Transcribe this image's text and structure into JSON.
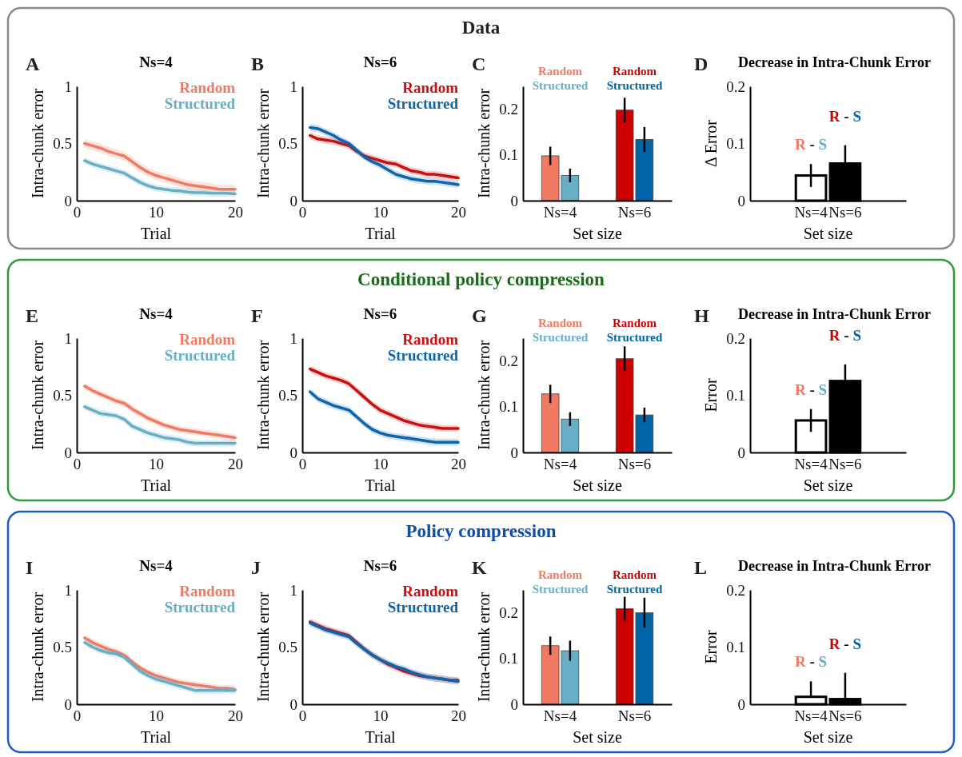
{
  "chart_data": [
    {
      "type": "line",
      "title": "Ns=4",
      "annotations": [
        "A"
      ],
      "xlabel": "Trial",
      "ylabel": "Intra-chunk error",
      "xlim": [
        0,
        20
      ],
      "xticks": [
        0,
        10,
        20
      ],
      "ylim": [
        0,
        1
      ],
      "yticks": [
        0,
        0.5,
        1
      ],
      "legend": "top right",
      "x": [
        1,
        2,
        3,
        4,
        5,
        6,
        7,
        8,
        9,
        10,
        11,
        12,
        13,
        14,
        15,
        16,
        17,
        18,
        19,
        20
      ],
      "series": [
        {
          "name": "Random",
          "color": "#f07a62",
          "values": [
            0.5,
            0.48,
            0.46,
            0.43,
            0.41,
            0.39,
            0.34,
            0.29,
            0.25,
            0.22,
            0.2,
            0.18,
            0.16,
            0.14,
            0.13,
            0.12,
            0.11,
            0.1,
            0.1,
            0.1
          ],
          "lower": [
            0.46,
            0.44,
            0.42,
            0.39,
            0.37,
            0.35,
            0.3,
            0.25,
            0.21,
            0.18,
            0.16,
            0.14,
            0.12,
            0.1,
            0.09,
            0.08,
            0.07,
            0.06,
            0.06,
            0.06
          ],
          "upper": [
            0.54,
            0.52,
            0.5,
            0.47,
            0.45,
            0.43,
            0.38,
            0.33,
            0.29,
            0.26,
            0.24,
            0.22,
            0.2,
            0.18,
            0.17,
            0.16,
            0.15,
            0.14,
            0.14,
            0.14
          ]
        },
        {
          "name": "Structured",
          "color": "#67aec6",
          "values": [
            0.35,
            0.32,
            0.3,
            0.28,
            0.26,
            0.24,
            0.2,
            0.16,
            0.13,
            0.11,
            0.1,
            0.09,
            0.085,
            0.075,
            0.07,
            0.07,
            0.065,
            0.065,
            0.065,
            0.06
          ],
          "lower": [
            0.32,
            0.29,
            0.27,
            0.25,
            0.23,
            0.21,
            0.17,
            0.13,
            0.1,
            0.08,
            0.07,
            0.06,
            0.055,
            0.045,
            0.04,
            0.04,
            0.035,
            0.035,
            0.035,
            0.03
          ],
          "upper": [
            0.38,
            0.35,
            0.33,
            0.31,
            0.29,
            0.27,
            0.23,
            0.19,
            0.16,
            0.14,
            0.13,
            0.12,
            0.115,
            0.105,
            0.1,
            0.1,
            0.095,
            0.095,
            0.095,
            0.09
          ]
        }
      ]
    },
    {
      "type": "line",
      "title": "Ns=6",
      "annotations": [
        "B"
      ],
      "xlabel": "Trial",
      "ylabel": "Intra-chunk error",
      "xlim": [
        0,
        20
      ],
      "xticks": [
        0,
        10,
        20
      ],
      "ylim": [
        0,
        1
      ],
      "yticks": [
        0,
        0.5,
        1
      ],
      "legend": "top right",
      "x": [
        1,
        2,
        3,
        4,
        5,
        6,
        7,
        8,
        9,
        10,
        11,
        12,
        13,
        14,
        15,
        16,
        17,
        18,
        19,
        20
      ],
      "series": [
        {
          "name": "Random",
          "color": "#c81010",
          "values": [
            0.57,
            0.54,
            0.53,
            0.52,
            0.5,
            0.48,
            0.43,
            0.39,
            0.37,
            0.35,
            0.33,
            0.32,
            0.29,
            0.26,
            0.25,
            0.23,
            0.23,
            0.22,
            0.21,
            0.2
          ],
          "lower": [
            0.54,
            0.51,
            0.5,
            0.49,
            0.47,
            0.45,
            0.4,
            0.36,
            0.34,
            0.32,
            0.3,
            0.29,
            0.26,
            0.23,
            0.22,
            0.2,
            0.2,
            0.19,
            0.18,
            0.17
          ],
          "upper": [
            0.6,
            0.57,
            0.56,
            0.55,
            0.53,
            0.51,
            0.46,
            0.42,
            0.4,
            0.38,
            0.36,
            0.35,
            0.32,
            0.29,
            0.28,
            0.26,
            0.26,
            0.25,
            0.24,
            0.23
          ]
        },
        {
          "name": "Structured",
          "color": "#0e65ad",
          "values": [
            0.64,
            0.63,
            0.6,
            0.57,
            0.53,
            0.5,
            0.44,
            0.38,
            0.34,
            0.31,
            0.27,
            0.23,
            0.21,
            0.19,
            0.18,
            0.17,
            0.17,
            0.16,
            0.15,
            0.14
          ],
          "lower": [
            0.61,
            0.6,
            0.57,
            0.54,
            0.5,
            0.47,
            0.41,
            0.35,
            0.31,
            0.28,
            0.24,
            0.2,
            0.18,
            0.16,
            0.15,
            0.14,
            0.14,
            0.13,
            0.12,
            0.11
          ],
          "upper": [
            0.67,
            0.66,
            0.63,
            0.6,
            0.56,
            0.53,
            0.47,
            0.41,
            0.37,
            0.34,
            0.3,
            0.26,
            0.24,
            0.22,
            0.21,
            0.2,
            0.2,
            0.19,
            0.18,
            0.17
          ]
        }
      ]
    },
    {
      "type": "bar",
      "subtitle": "Data",
      "annotations": [
        "C"
      ],
      "xlabel": "Set size",
      "ylabel": "Intra-chunk error",
      "ylim": [
        0,
        0.25
      ],
      "yticks": [
        0,
        0.1,
        0.2
      ],
      "legend": "top",
      "categories": [
        "Ns=4",
        "Ns=6"
      ],
      "series": [
        {
          "name": "Random",
          "colors": [
            "#f07a62",
            "#cc0000"
          ],
          "values": [
            0.098,
            0.198
          ],
          "errors": [
            0.02,
            0.027
          ]
        },
        {
          "name": "Structured",
          "colors": [
            "#67aec6",
            "#0065a8"
          ],
          "values": [
            0.055,
            0.134
          ],
          "errors": [
            0.015,
            0.027
          ]
        }
      ]
    },
    {
      "type": "bar",
      "title": "Decrease in Intra-Chunk Error",
      "annotations": [
        "D",
        "R - S",
        "R - S"
      ],
      "xlabel": "Set size",
      "ylabel": "Δ Error",
      "ylim": [
        0,
        0.2
      ],
      "yticks": [
        0,
        0.1,
        0.2
      ],
      "categories": [
        "Ns=4",
        "Ns=6"
      ],
      "values": [
        0.044,
        0.065
      ],
      "colors": [
        "#ffffff",
        "#000000"
      ],
      "errors": [
        0.02,
        0.032
      ]
    },
    {
      "type": "line",
      "title": "Ns=4",
      "annotations": [
        "E"
      ],
      "xlabel": "Trial",
      "ylabel": "Intra-chunk error",
      "xlim": [
        0,
        20
      ],
      "xticks": [
        0,
        10,
        20
      ],
      "ylim": [
        0,
        1
      ],
      "yticks": [
        0,
        0.5,
        1
      ],
      "legend": "top right",
      "x": [
        1,
        2,
        3,
        4,
        5,
        6,
        7,
        8,
        9,
        10,
        11,
        12,
        13,
        14,
        15,
        16,
        17,
        18,
        19,
        20
      ],
      "series": [
        {
          "name": "Random",
          "color": "#f07a62",
          "values": [
            0.58,
            0.54,
            0.51,
            0.48,
            0.45,
            0.43,
            0.38,
            0.34,
            0.3,
            0.27,
            0.24,
            0.22,
            0.2,
            0.19,
            0.18,
            0.17,
            0.16,
            0.15,
            0.14,
            0.13
          ],
          "lower": [
            0.55,
            0.51,
            0.48,
            0.45,
            0.42,
            0.4,
            0.35,
            0.31,
            0.27,
            0.24,
            0.21,
            0.19,
            0.17,
            0.16,
            0.15,
            0.14,
            0.13,
            0.12,
            0.11,
            0.1
          ],
          "upper": [
            0.61,
            0.57,
            0.54,
            0.51,
            0.48,
            0.46,
            0.41,
            0.37,
            0.33,
            0.3,
            0.27,
            0.25,
            0.23,
            0.22,
            0.21,
            0.2,
            0.19,
            0.18,
            0.17,
            0.16
          ]
        },
        {
          "name": "Structured",
          "color": "#67aec6",
          "values": [
            0.4,
            0.37,
            0.34,
            0.33,
            0.32,
            0.29,
            0.23,
            0.2,
            0.17,
            0.15,
            0.13,
            0.12,
            0.11,
            0.09,
            0.08,
            0.08,
            0.08,
            0.08,
            0.08,
            0.08
          ],
          "lower": [
            0.37,
            0.34,
            0.31,
            0.3,
            0.29,
            0.26,
            0.2,
            0.17,
            0.14,
            0.12,
            0.1,
            0.09,
            0.08,
            0.06,
            0.05,
            0.05,
            0.05,
            0.05,
            0.05,
            0.05
          ],
          "upper": [
            0.43,
            0.4,
            0.37,
            0.36,
            0.35,
            0.32,
            0.26,
            0.23,
            0.2,
            0.18,
            0.16,
            0.15,
            0.14,
            0.12,
            0.11,
            0.11,
            0.11,
            0.11,
            0.11,
            0.11
          ]
        }
      ]
    },
    {
      "type": "line",
      "title": "Ns=6",
      "annotations": [
        "F"
      ],
      "xlabel": "Trial",
      "ylabel": "Intra-chunk error",
      "xlim": [
        0,
        20
      ],
      "xticks": [
        0,
        10,
        20
      ],
      "ylim": [
        0,
        1
      ],
      "yticks": [
        0,
        0.5,
        1
      ],
      "legend": "top right",
      "x": [
        1,
        2,
        3,
        4,
        5,
        6,
        7,
        8,
        9,
        10,
        11,
        12,
        13,
        14,
        15,
        16,
        17,
        18,
        19,
        20
      ],
      "series": [
        {
          "name": "Random",
          "color": "#c81010",
          "values": [
            0.73,
            0.7,
            0.67,
            0.65,
            0.63,
            0.6,
            0.54,
            0.48,
            0.42,
            0.37,
            0.34,
            0.31,
            0.28,
            0.26,
            0.24,
            0.23,
            0.22,
            0.21,
            0.21,
            0.21
          ],
          "lower": [
            0.7,
            0.67,
            0.64,
            0.62,
            0.6,
            0.57,
            0.51,
            0.45,
            0.39,
            0.34,
            0.31,
            0.28,
            0.25,
            0.23,
            0.21,
            0.2,
            0.19,
            0.18,
            0.18,
            0.18
          ],
          "upper": [
            0.76,
            0.73,
            0.7,
            0.68,
            0.66,
            0.63,
            0.57,
            0.51,
            0.45,
            0.4,
            0.37,
            0.34,
            0.31,
            0.29,
            0.27,
            0.26,
            0.25,
            0.24,
            0.24,
            0.24
          ]
        },
        {
          "name": "Structured",
          "color": "#0e65ad",
          "values": [
            0.53,
            0.47,
            0.44,
            0.41,
            0.39,
            0.37,
            0.31,
            0.25,
            0.2,
            0.17,
            0.15,
            0.14,
            0.13,
            0.12,
            0.11,
            0.1,
            0.09,
            0.09,
            0.09,
            0.09
          ],
          "lower": [
            0.5,
            0.44,
            0.41,
            0.38,
            0.36,
            0.34,
            0.28,
            0.22,
            0.17,
            0.14,
            0.12,
            0.11,
            0.1,
            0.09,
            0.08,
            0.07,
            0.06,
            0.06,
            0.06,
            0.06
          ],
          "upper": [
            0.56,
            0.5,
            0.47,
            0.44,
            0.42,
            0.4,
            0.34,
            0.28,
            0.23,
            0.2,
            0.18,
            0.17,
            0.16,
            0.15,
            0.14,
            0.13,
            0.12,
            0.12,
            0.12,
            0.12
          ]
        }
      ]
    },
    {
      "type": "bar",
      "subtitle": "Conditional policy compression",
      "annotations": [
        "G"
      ],
      "xlabel": "Set size",
      "ylabel": "Intra-chunk error",
      "ylim": [
        0,
        0.25
      ],
      "yticks": [
        0,
        0.1,
        0.2
      ],
      "legend": "top",
      "categories": [
        "Ns=4",
        "Ns=6"
      ],
      "series": [
        {
          "name": "Random",
          "colors": [
            "#f07a62",
            "#cc0000"
          ],
          "values": [
            0.128,
            0.205
          ],
          "errors": [
            0.02,
            0.027
          ]
        },
        {
          "name": "Structured",
          "colors": [
            "#67aec6",
            "#0065a8"
          ],
          "values": [
            0.073,
            0.082
          ],
          "errors": [
            0.015,
            0.016
          ]
        }
      ]
    },
    {
      "type": "bar",
      "title": "Decrease in Intra-Chunk Error",
      "annotations": [
        "H",
        "R - S",
        "R - S"
      ],
      "xlabel": "Set size",
      "ylabel": "Error",
      "ylim": [
        0,
        0.2
      ],
      "yticks": [
        0,
        0.1,
        0.2
      ],
      "categories": [
        "Ns=4",
        "Ns=6"
      ],
      "values": [
        0.056,
        0.125
      ],
      "colors": [
        "#ffffff",
        "#000000"
      ],
      "errors": [
        0.02,
        0.029
      ]
    },
    {
      "type": "line",
      "title": "Ns=4",
      "annotations": [
        "I"
      ],
      "xlabel": "Trial",
      "ylabel": "Intra-chunk error",
      "xlim": [
        0,
        20
      ],
      "xticks": [
        0,
        10,
        20
      ],
      "ylim": [
        0,
        1
      ],
      "yticks": [
        0,
        0.5,
        1
      ],
      "legend": "top right",
      "x": [
        1,
        2,
        3,
        4,
        5,
        6,
        7,
        8,
        9,
        10,
        11,
        12,
        13,
        14,
        15,
        16,
        17,
        18,
        19,
        20
      ],
      "series": [
        {
          "name": "Random",
          "color": "#f07a62",
          "values": [
            0.58,
            0.54,
            0.51,
            0.48,
            0.46,
            0.43,
            0.37,
            0.32,
            0.28,
            0.25,
            0.23,
            0.21,
            0.19,
            0.18,
            0.17,
            0.16,
            0.15,
            0.14,
            0.14,
            0.13
          ],
          "lower": [
            0.55,
            0.51,
            0.48,
            0.45,
            0.43,
            0.4,
            0.34,
            0.29,
            0.25,
            0.22,
            0.2,
            0.18,
            0.16,
            0.15,
            0.14,
            0.13,
            0.12,
            0.11,
            0.11,
            0.1
          ],
          "upper": [
            0.61,
            0.57,
            0.54,
            0.51,
            0.49,
            0.46,
            0.4,
            0.35,
            0.31,
            0.28,
            0.26,
            0.24,
            0.22,
            0.21,
            0.2,
            0.19,
            0.18,
            0.17,
            0.17,
            0.16
          ]
        },
        {
          "name": "Structured",
          "color": "#67aec6",
          "values": [
            0.54,
            0.5,
            0.47,
            0.45,
            0.44,
            0.41,
            0.35,
            0.29,
            0.25,
            0.22,
            0.2,
            0.18,
            0.16,
            0.14,
            0.12,
            0.12,
            0.12,
            0.12,
            0.12,
            0.12
          ],
          "lower": [
            0.51,
            0.47,
            0.44,
            0.42,
            0.41,
            0.38,
            0.32,
            0.26,
            0.22,
            0.19,
            0.17,
            0.15,
            0.13,
            0.11,
            0.09,
            0.09,
            0.09,
            0.09,
            0.09,
            0.09
          ],
          "upper": [
            0.57,
            0.53,
            0.5,
            0.48,
            0.47,
            0.44,
            0.38,
            0.32,
            0.28,
            0.25,
            0.23,
            0.21,
            0.19,
            0.17,
            0.15,
            0.15,
            0.15,
            0.15,
            0.15,
            0.15
          ]
        }
      ]
    },
    {
      "type": "line",
      "title": "Ns=6",
      "annotations": [
        "J"
      ],
      "xlabel": "Trial",
      "ylabel": "Intra-chunk error",
      "xlim": [
        0,
        20
      ],
      "xticks": [
        0,
        10,
        20
      ],
      "ylim": [
        0,
        1
      ],
      "yticks": [
        0,
        0.5,
        1
      ],
      "legend": "top right",
      "x": [
        1,
        2,
        3,
        4,
        5,
        6,
        7,
        8,
        9,
        10,
        11,
        12,
        13,
        14,
        15,
        16,
        17,
        18,
        19,
        20
      ],
      "series": [
        {
          "name": "Random",
          "color": "#c81010",
          "values": [
            0.72,
            0.69,
            0.66,
            0.64,
            0.62,
            0.6,
            0.54,
            0.48,
            0.43,
            0.39,
            0.35,
            0.32,
            0.29,
            0.27,
            0.25,
            0.24,
            0.23,
            0.22,
            0.21,
            0.21
          ],
          "lower": [
            0.69,
            0.66,
            0.63,
            0.61,
            0.59,
            0.57,
            0.51,
            0.45,
            0.4,
            0.36,
            0.32,
            0.29,
            0.26,
            0.24,
            0.22,
            0.21,
            0.2,
            0.19,
            0.18,
            0.18
          ],
          "upper": [
            0.75,
            0.72,
            0.69,
            0.67,
            0.65,
            0.63,
            0.57,
            0.51,
            0.46,
            0.42,
            0.38,
            0.35,
            0.32,
            0.3,
            0.28,
            0.27,
            0.26,
            0.25,
            0.24,
            0.24
          ]
        },
        {
          "name": "Structured",
          "color": "#0e65ad",
          "values": [
            0.71,
            0.68,
            0.65,
            0.63,
            0.61,
            0.59,
            0.53,
            0.48,
            0.43,
            0.39,
            0.36,
            0.33,
            0.31,
            0.28,
            0.26,
            0.24,
            0.23,
            0.22,
            0.21,
            0.2
          ],
          "lower": [
            0.68,
            0.65,
            0.62,
            0.6,
            0.58,
            0.56,
            0.5,
            0.45,
            0.4,
            0.36,
            0.33,
            0.3,
            0.28,
            0.25,
            0.23,
            0.21,
            0.2,
            0.19,
            0.18,
            0.17
          ],
          "upper": [
            0.74,
            0.71,
            0.68,
            0.66,
            0.64,
            0.62,
            0.56,
            0.51,
            0.46,
            0.42,
            0.39,
            0.36,
            0.34,
            0.31,
            0.29,
            0.27,
            0.26,
            0.25,
            0.24,
            0.23
          ]
        }
      ]
    },
    {
      "type": "bar",
      "subtitle": "Policy compression",
      "annotations": [
        "K"
      ],
      "xlabel": "Set size",
      "ylabel": "Intra-chunk error",
      "ylim": [
        0,
        0.25
      ],
      "yticks": [
        0,
        0.1,
        0.2
      ],
      "legend": "top",
      "categories": [
        "Ns=4",
        "Ns=6"
      ],
      "series": [
        {
          "name": "Random",
          "colors": [
            "#f07a62",
            "#cc0000"
          ],
          "values": [
            0.128,
            0.209
          ],
          "errors": [
            0.02,
            0.026
          ]
        },
        {
          "name": "Structured",
          "colors": [
            "#67aec6",
            "#0065a8"
          ],
          "values": [
            0.117,
            0.2
          ],
          "errors": [
            0.022,
            0.033
          ]
        }
      ]
    },
    {
      "type": "bar",
      "title": "Decrease in Intra-Chunk Error",
      "annotations": [
        "L",
        "R - S",
        "R - S"
      ],
      "xlabel": "Set size",
      "ylabel": "Error",
      "ylim": [
        0,
        0.2
      ],
      "yticks": [
        0,
        0.1,
        0.2
      ],
      "categories": [
        "Ns=4",
        "Ns=6"
      ],
      "values": [
        0.013,
        0.009
      ],
      "colors": [
        "#ffffff",
        "#000000"
      ],
      "errors": [
        [
          0.013,
          0.04
        ],
        [
          0.009,
          0.055
        ]
      ]
    }
  ]
}
